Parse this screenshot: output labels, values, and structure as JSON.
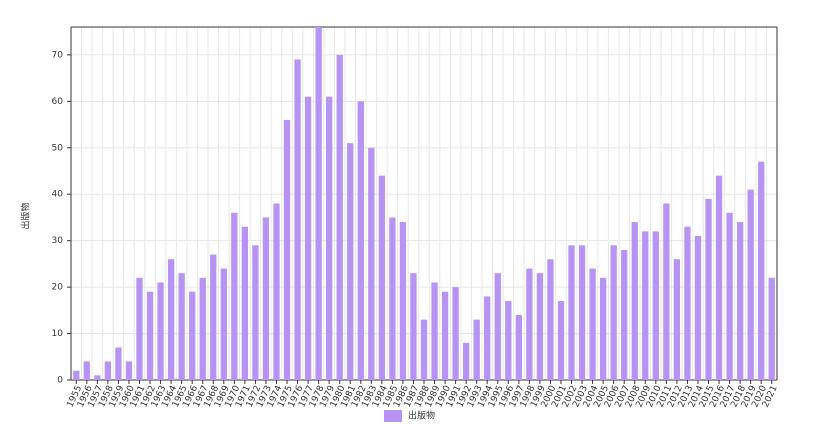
{
  "chart_data": {
    "type": "bar",
    "y_label": "出版物",
    "categories": [
      "1955",
      "1956",
      "1957",
      "1958",
      "1959",
      "1960",
      "1961",
      "1962",
      "1963",
      "1964",
      "1965",
      "1966",
      "1967",
      "1968",
      "1969",
      "1970",
      "1971",
      "1972",
      "1973",
      "1974",
      "1975",
      "1976",
      "1977",
      "1978",
      "1979",
      "1980",
      "1981",
      "1982",
      "1983",
      "1984",
      "1985",
      "1986",
      "1987",
      "1988",
      "1989",
      "1990",
      "1991",
      "1992",
      "1993",
      "1994",
      "1995",
      "1996",
      "1997",
      "1998",
      "1999",
      "2000",
      "2001",
      "2002",
      "2003",
      "2004",
      "2005",
      "2006",
      "2007",
      "2008",
      "2009",
      "2010",
      "2011",
      "2012",
      "2013",
      "2014",
      "2015",
      "2016",
      "2017",
      "2018",
      "2019",
      "2020",
      "2021"
    ],
    "series": [
      {
        "name": "出版物",
        "color": "#b794f4",
        "values": [
          2,
          4,
          1,
          4,
          7,
          4,
          22,
          19,
          21,
          26,
          23,
          19,
          22,
          27,
          24,
          36,
          33,
          29,
          35,
          38,
          56,
          69,
          61,
          76,
          61,
          70,
          51,
          60,
          50,
          44,
          35,
          34,
          23,
          13,
          21,
          19,
          20,
          8,
          13,
          18,
          23,
          17,
          14,
          24,
          23,
          26,
          17,
          29,
          29,
          24,
          22,
          29,
          28,
          34,
          32,
          32,
          38,
          26,
          33,
          31,
          39,
          44,
          36,
          34,
          41,
          47,
          22
        ]
      }
    ],
    "ylim": [
      0,
      76
    ],
    "yticks": [
      0,
      10,
      20,
      30,
      40,
      50,
      60,
      70
    ],
    "grid": true,
    "legend": "bottom"
  }
}
